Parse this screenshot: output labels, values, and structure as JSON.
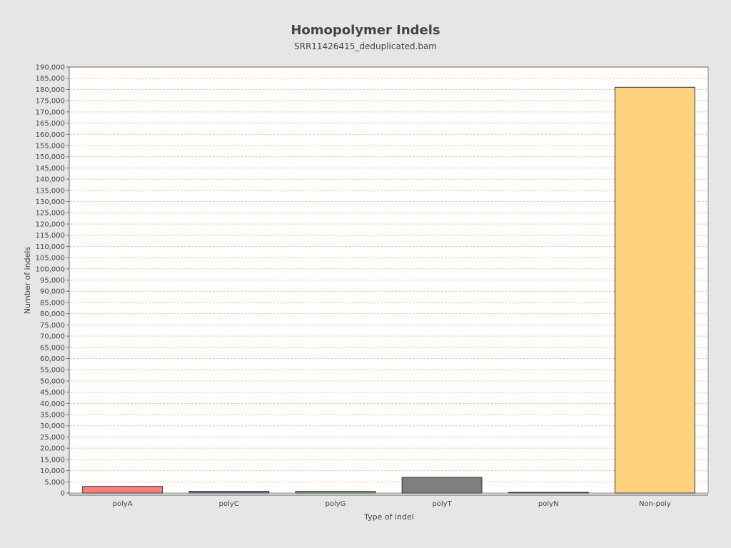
{
  "chart_data": {
    "type": "bar",
    "title": "Homopolymer Indels",
    "subtitle": "SRR11426415_deduplicated.bam",
    "xlabel": "Type of indel",
    "ylabel": "Number of indels",
    "categories": [
      "polyA",
      "polyC",
      "polyG",
      "polyT",
      "polyN",
      "Non-poly"
    ],
    "values": [
      2950,
      750,
      750,
      7000,
      100,
      181000
    ],
    "colors": [
      "#ff7f7f",
      "#7f7fbf",
      "#7fbf7f",
      "#7f7f7f",
      "#bfbf7f",
      "#ffd27f"
    ],
    "ylim": [
      0,
      190000
    ],
    "ytick_step": 5000,
    "grid": true,
    "legend": "none",
    "plot_background": "#ffffff",
    "page_background": "#e6e6e6",
    "grid_color": "#f0c8a0"
  }
}
